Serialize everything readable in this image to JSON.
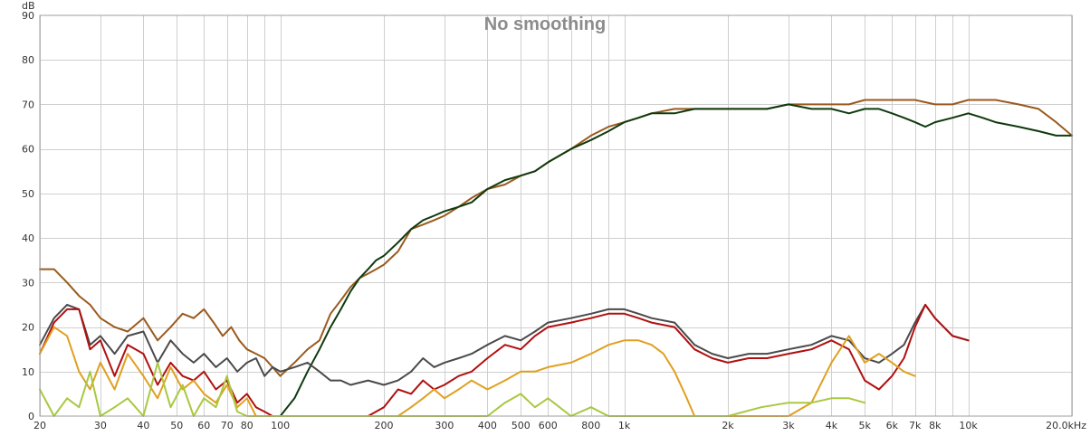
{
  "chart_data": {
    "type": "line",
    "title": "No smoothing",
    "ylabel": "dB",
    "xunit": "Hz",
    "xscale": "log",
    "xlim": [
      20,
      20000
    ],
    "ylim": [
      0,
      90
    ],
    "grid": true,
    "xticks": [
      {
        "v": 20,
        "label": "20"
      },
      {
        "v": 30,
        "label": "30"
      },
      {
        "v": 40,
        "label": "40"
      },
      {
        "v": 50,
        "label": "50"
      },
      {
        "v": 60,
        "label": "60"
      },
      {
        "v": 70,
        "label": "70"
      },
      {
        "v": 80,
        "label": "80"
      },
      {
        "v": 100,
        "label": "100"
      },
      {
        "v": 200,
        "label": "200"
      },
      {
        "v": 300,
        "label": "300"
      },
      {
        "v": 400,
        "label": "400"
      },
      {
        "v": 500,
        "label": "500"
      },
      {
        "v": 600,
        "label": "600"
      },
      {
        "v": 800,
        "label": "800"
      },
      {
        "v": 1000,
        "label": "1k"
      },
      {
        "v": 2000,
        "label": "2k"
      },
      {
        "v": 3000,
        "label": "3k"
      },
      {
        "v": 4000,
        "label": "4k"
      },
      {
        "v": 5000,
        "label": "5k"
      },
      {
        "v": 6000,
        "label": "6k"
      },
      {
        "v": 7000,
        "label": "7k"
      },
      {
        "v": 8000,
        "label": "8k"
      },
      {
        "v": 10000,
        "label": "10k"
      },
      {
        "v": 20000,
        "label": "20.0k"
      }
    ],
    "yticks": [
      {
        "v": 0,
        "label": "0"
      },
      {
        "v": 10,
        "label": "10"
      },
      {
        "v": 20,
        "label": "20"
      },
      {
        "v": 30,
        "label": "30"
      },
      {
        "v": 40,
        "label": "40"
      },
      {
        "v": 50,
        "label": "50"
      },
      {
        "v": 60,
        "label": "60"
      },
      {
        "v": 70,
        "label": "70"
      },
      {
        "v": 80,
        "label": "80"
      },
      {
        "v": 90,
        "label": "90"
      }
    ],
    "series": [
      {
        "color": "#9a5a1e",
        "x": [
          20,
          22,
          24,
          26,
          28,
          30,
          33,
          36,
          40,
          44,
          48,
          52,
          56,
          60,
          64,
          68,
          72,
          76,
          80,
          85,
          90,
          95,
          100,
          110,
          120,
          130,
          140,
          150,
          160,
          170,
          180,
          190,
          200,
          220,
          240,
          260,
          280,
          300,
          330,
          360,
          400,
          450,
          500,
          550,
          600,
          700,
          800,
          900,
          1000,
          1100,
          1200,
          1400,
          1600,
          1800,
          2000,
          2300,
          2600,
          3000,
          3500,
          4000,
          4500,
          5000,
          5500,
          6000,
          7000,
          8000,
          9000,
          10000,
          11000,
          12000,
          14000,
          16000,
          18000,
          20000
        ],
        "y": [
          33,
          33,
          30,
          27,
          25,
          22,
          20,
          19,
          22,
          17,
          20,
          23,
          22,
          24,
          21,
          18,
          20,
          17,
          15,
          14,
          13,
          11,
          9,
          12,
          15,
          17,
          23,
          26,
          29,
          31,
          32,
          33,
          34,
          37,
          42,
          43,
          44,
          45,
          47,
          49,
          51,
          52,
          54,
          55,
          57,
          60,
          63,
          65,
          66,
          67,
          68,
          69,
          69,
          69,
          69,
          69,
          69,
          70,
          70,
          70,
          70,
          71,
          71,
          71,
          71,
          70,
          70,
          71,
          71,
          71,
          70,
          69,
          66,
          63
        ]
      },
      {
        "color": "#0f3a0f",
        "x": [
          100,
          110,
          120,
          130,
          140,
          150,
          160,
          170,
          180,
          190,
          200,
          220,
          240,
          260,
          280,
          300,
          330,
          360,
          400,
          450,
          500,
          550,
          600,
          700,
          800,
          900,
          1000,
          1100,
          1200,
          1400,
          1600,
          1800,
          2000,
          2300,
          2600,
          3000,
          3500,
          4000,
          4500,
          5000,
          5500,
          6000,
          6500,
          7000,
          7500,
          8000,
          9000,
          10000,
          11000,
          12000,
          14000,
          16000,
          18000,
          20000
        ],
        "y": [
          0,
          4,
          10,
          15,
          20,
          24,
          28,
          31,
          33,
          35,
          36,
          39,
          42,
          44,
          45,
          46,
          47,
          48,
          51,
          53,
          54,
          55,
          57,
          60,
          62,
          64,
          66,
          67,
          68,
          68,
          69,
          69,
          69,
          69,
          69,
          70,
          69,
          69,
          68,
          69,
          69,
          68,
          67,
          66,
          65,
          66,
          67,
          68,
          67,
          66,
          65,
          64,
          63,
          63
        ]
      },
      {
        "color": "#4a4a4a",
        "x": [
          20,
          22,
          24,
          26,
          28,
          30,
          33,
          36,
          40,
          44,
          48,
          52,
          56,
          60,
          65,
          70,
          75,
          80,
          85,
          90,
          95,
          100,
          110,
          120,
          130,
          140,
          150,
          160,
          180,
          200,
          220,
          240,
          260,
          280,
          300,
          330,
          360,
          400,
          450,
          500,
          550,
          600,
          700,
          800,
          900,
          1000,
          1100,
          1200,
          1400,
          1600,
          1800,
          2000,
          2300,
          2600,
          3000,
          3500,
          4000,
          4500,
          5000,
          5500,
          6000,
          6500,
          7000,
          7500,
          8000,
          9000,
          10000
        ],
        "y": [
          16,
          22,
          25,
          24,
          16,
          18,
          14,
          18,
          19,
          12,
          17,
          14,
          12,
          14,
          11,
          13,
          10,
          12,
          13,
          9,
          11,
          10,
          11,
          12,
          10,
          8,
          8,
          7,
          8,
          7,
          8,
          10,
          13,
          11,
          12,
          13,
          14,
          16,
          18,
          17,
          19,
          21,
          22,
          23,
          24,
          24,
          23,
          22,
          21,
          16,
          14,
          13,
          14,
          14,
          15,
          16,
          18,
          17,
          13,
          12,
          14,
          16,
          21,
          25,
          22,
          18,
          17
        ]
      },
      {
        "color": "#b01010",
        "x": [
          20,
          22,
          24,
          26,
          28,
          30,
          33,
          36,
          40,
          44,
          48,
          52,
          56,
          60,
          65,
          70,
          75,
          80,
          85,
          90,
          95,
          100,
          110,
          120,
          130,
          140,
          150,
          160,
          180,
          200,
          220,
          240,
          260,
          280,
          300,
          330,
          360,
          400,
          450,
          500,
          550,
          600,
          700,
          800,
          900,
          1000,
          1100,
          1200,
          1400,
          1600,
          1800,
          2000,
          2300,
          2600,
          3000,
          3500,
          4000,
          4500,
          5000,
          5500,
          6000,
          6500,
          7000,
          7500,
          8000,
          9000,
          10000
        ],
        "y": [
          14,
          21,
          24,
          24,
          15,
          17,
          9,
          16,
          14,
          7,
          12,
          9,
          8,
          10,
          6,
          8,
          3,
          5,
          2,
          1,
          0,
          0,
          0,
          0,
          0,
          0,
          0,
          0,
          0,
          2,
          6,
          5,
          8,
          6,
          7,
          9,
          10,
          13,
          16,
          15,
          18,
          20,
          21,
          22,
          23,
          23,
          22,
          21,
          20,
          15,
          13,
          12,
          13,
          13,
          14,
          15,
          17,
          15,
          8,
          6,
          9,
          13,
          20,
          25,
          22,
          18,
          17
        ]
      },
      {
        "color": "#e0a020",
        "x": [
          20,
          22,
          24,
          26,
          28,
          30,
          33,
          36,
          40,
          44,
          48,
          52,
          56,
          60,
          65,
          70,
          75,
          80,
          85,
          90,
          95,
          100,
          110,
          120,
          130,
          140,
          150,
          160,
          180,
          200,
          220,
          240,
          260,
          280,
          300,
          330,
          360,
          400,
          450,
          500,
          550,
          600,
          700,
          800,
          900,
          1000,
          1100,
          1200,
          1300,
          1400,
          1500,
          1600,
          1800,
          2000,
          2300,
          2600,
          3000,
          3500,
          4000,
          4500,
          5000,
          5500,
          6000,
          6500,
          7000
        ],
        "y": [
          14,
          20,
          18,
          10,
          6,
          12,
          6,
          14,
          9,
          4,
          11,
          6,
          8,
          5,
          3,
          7,
          2,
          4,
          0,
          0,
          0,
          0,
          0,
          0,
          0,
          0,
          0,
          0,
          0,
          0,
          0,
          2,
          4,
          6,
          4,
          6,
          8,
          6,
          8,
          10,
          10,
          11,
          12,
          14,
          16,
          17,
          17,
          16,
          14,
          10,
          5,
          0,
          0,
          0,
          0,
          0,
          0,
          3,
          12,
          18,
          12,
          14,
          12,
          10,
          9
        ]
      },
      {
        "color": "#a8c840",
        "x": [
          20,
          22,
          24,
          26,
          28,
          30,
          33,
          36,
          40,
          44,
          48,
          52,
          56,
          60,
          65,
          70,
          75,
          80,
          85,
          90,
          95,
          100,
          110,
          120,
          130,
          140,
          150,
          160,
          180,
          200,
          300,
          400,
          450,
          500,
          550,
          600,
          700,
          800,
          900,
          1000,
          1500,
          2000,
          2500,
          3000,
          3500,
          4000,
          4500,
          5000
        ],
        "y": [
          6,
          0,
          4,
          2,
          10,
          0,
          2,
          4,
          0,
          12,
          2,
          7,
          0,
          4,
          2,
          9,
          1,
          0,
          0,
          0,
          0,
          0,
          0,
          0,
          0,
          0,
          0,
          0,
          0,
          0,
          0,
          0,
          3,
          5,
          2,
          4,
          0,
          2,
          0,
          0,
          0,
          0,
          2,
          3,
          3,
          4,
          4,
          3
        ]
      }
    ]
  }
}
